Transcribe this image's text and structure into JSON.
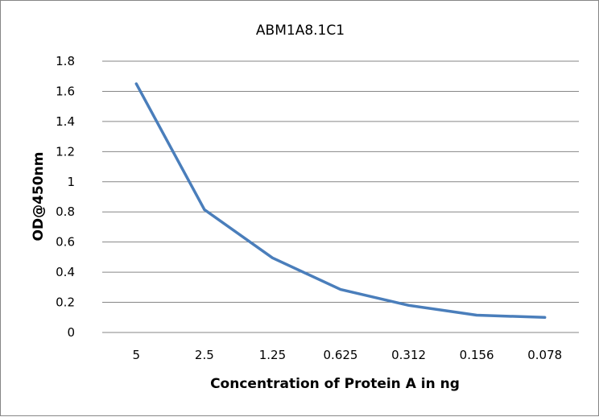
{
  "chart_data": {
    "type": "line",
    "title": "ABM1A8.1C1",
    "xlabel": "Concentration of Protein A in ng",
    "ylabel": "OD@450nm",
    "categories": [
      "5",
      "2.5",
      "1.25",
      "0.625",
      "0.312",
      "0.156",
      "0.078"
    ],
    "series": [
      {
        "values": [
          1.65,
          0.815,
          0.495,
          0.285,
          0.18,
          0.115,
          0.1
        ],
        "color": "#4A7EBB"
      }
    ],
    "ylim": [
      0,
      1.8
    ],
    "yticks": [
      0,
      0.2,
      0.4,
      0.6,
      0.8,
      1,
      1.2,
      1.4,
      1.6,
      1.8
    ],
    "ytick_labels": [
      "0",
      "0.2",
      "0.4",
      "0.6",
      "0.8",
      "1",
      "1.2",
      "1.4",
      "1.6",
      "1.8"
    ],
    "grid": true,
    "legend": false
  },
  "colors": {
    "gridline": "#868686",
    "line": "#4A7EBB",
    "frame": "#868686"
  }
}
